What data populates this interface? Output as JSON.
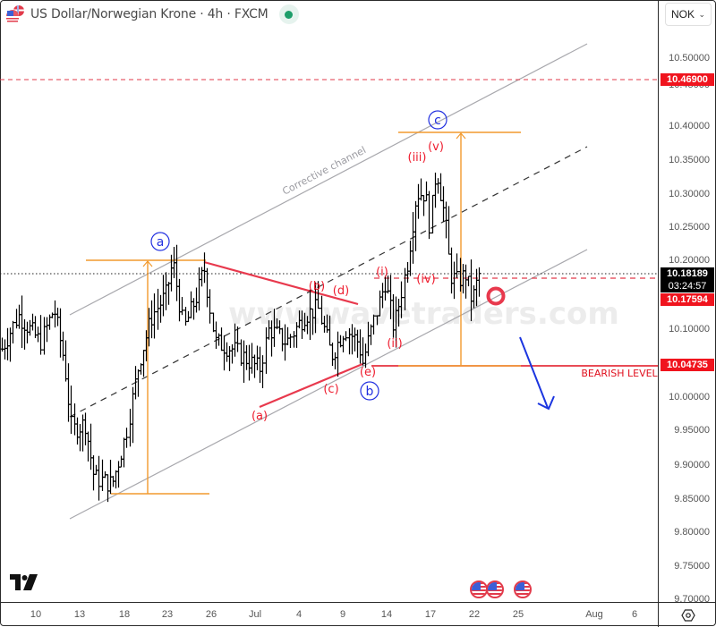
{
  "header": {
    "symbol_title": "US Dollar/Norwegian Krone · 4h · FXCM",
    "status": "market-open",
    "status_color": "#1e9e6a"
  },
  "price_axis": {
    "currency": "NOK",
    "ticks": [
      "10.50000",
      "10.45000",
      "10.40000",
      "10.35000",
      "10.30000",
      "10.25000",
      "10.20000",
      "10.10000",
      "10.00000",
      "9.95000",
      "9.90000",
      "9.85000",
      "9.80000",
      "9.75000",
      "9.70000"
    ],
    "labels": {
      "resistance": {
        "value": "10.46900",
        "bg": "#f0141e"
      },
      "last_price": {
        "value": "10.18189",
        "bg": "#000000"
      },
      "countdown": {
        "value": "03:24:57",
        "bg": "#000000"
      },
      "current_level": {
        "value": "10.17594",
        "bg": "#f0141e"
      },
      "bearish": {
        "value": "10.04735",
        "bg": "#f0141e"
      }
    }
  },
  "time_axis": {
    "ticks": [
      "10",
      "13",
      "18",
      "23",
      "26",
      "Jul",
      "4",
      "9",
      "14",
      "17",
      "22",
      "25",
      "Aug",
      "6"
    ]
  },
  "annotations": {
    "channel_label": "Corrective channel",
    "watermark": "www.wavetraders.com",
    "bearish_level_label": "BEARISH LEVEL",
    "major_waves": [
      "a",
      "b",
      "c"
    ],
    "minor_waves_triangle": [
      "(a)",
      "(b)",
      "(c)",
      "(d)",
      "(e)"
    ],
    "impulse_waves": [
      "(i)",
      "(ii)",
      "(iii)",
      "(iv)",
      "(v)"
    ]
  },
  "colors": {
    "wave_major": "#2230e0",
    "wave_minor": "#ee1c2e",
    "measure": "#f29a2e",
    "channel": "#a8a8ad",
    "bars": "#000000",
    "arrow": "#1b35e0"
  },
  "chart_data": {
    "type": "ohlc",
    "title": "US Dollar/Norwegian Krone · 4h · FXCM",
    "xlabel": "",
    "ylabel": "NOK",
    "ylim": [
      9.7,
      10.52
    ],
    "x_ticks": [
      "10",
      "13",
      "18",
      "23",
      "26",
      "Jul",
      "4",
      "9",
      "14",
      "17",
      "22",
      "25",
      "Aug",
      "6"
    ],
    "grid": false,
    "approx_closes_by_date": [
      {
        "date": "Jun 10",
        "price": 10.08
      },
      {
        "date": "Jun 12",
        "price": 10.12
      },
      {
        "date": "Jun 14",
        "price": 9.97
      },
      {
        "date": "Jun 17",
        "price": 9.88
      },
      {
        "date": "Jun 19",
        "price": 9.9
      },
      {
        "date": "Jun 21",
        "price": 10.05
      },
      {
        "date": "Jun 24",
        "price": 10.15
      },
      {
        "date": "Jun 25",
        "price": 10.2
      },
      {
        "date": "Jun 27",
        "price": 10.08
      },
      {
        "date": "Jul 1",
        "price": 10.08
      },
      {
        "date": "Jul 3",
        "price": 10.1
      },
      {
        "date": "Jul 5",
        "price": 10.15
      },
      {
        "date": "Jul 9",
        "price": 10.1
      },
      {
        "date": "Jul 10",
        "price": 10.05
      },
      {
        "date": "Jul 12",
        "price": 10.15
      },
      {
        "date": "Jul 15",
        "price": 10.25
      },
      {
        "date": "Jul 16",
        "price": 10.33
      },
      {
        "date": "Jul 17",
        "price": 10.35
      },
      {
        "date": "Jul 18",
        "price": 10.25
      },
      {
        "date": "Jul 19",
        "price": 10.15
      },
      {
        "date": "Jul 22",
        "price": 10.18
      }
    ],
    "key_levels": [
      {
        "name": "resistance",
        "value": 10.469
      },
      {
        "name": "last_price",
        "value": 10.18189
      },
      {
        "name": "invalidation",
        "value": 10.17594
      },
      {
        "name": "bearish_level",
        "value": 10.04735
      },
      {
        "name": "wave_a_low",
        "value": 9.855
      },
      {
        "name": "wave_a_high",
        "value": 10.2
      },
      {
        "name": "wave_c_target",
        "value": 10.39
      }
    ],
    "annotations": [
      "Corrective channel",
      "a",
      "b",
      "c",
      "(a)",
      "(b)",
      "(c)",
      "(d)",
      "(e)",
      "(i)",
      "(ii)",
      "(iii)",
      "(iv)",
      "(v)",
      "BEARISH LEVEL"
    ]
  }
}
